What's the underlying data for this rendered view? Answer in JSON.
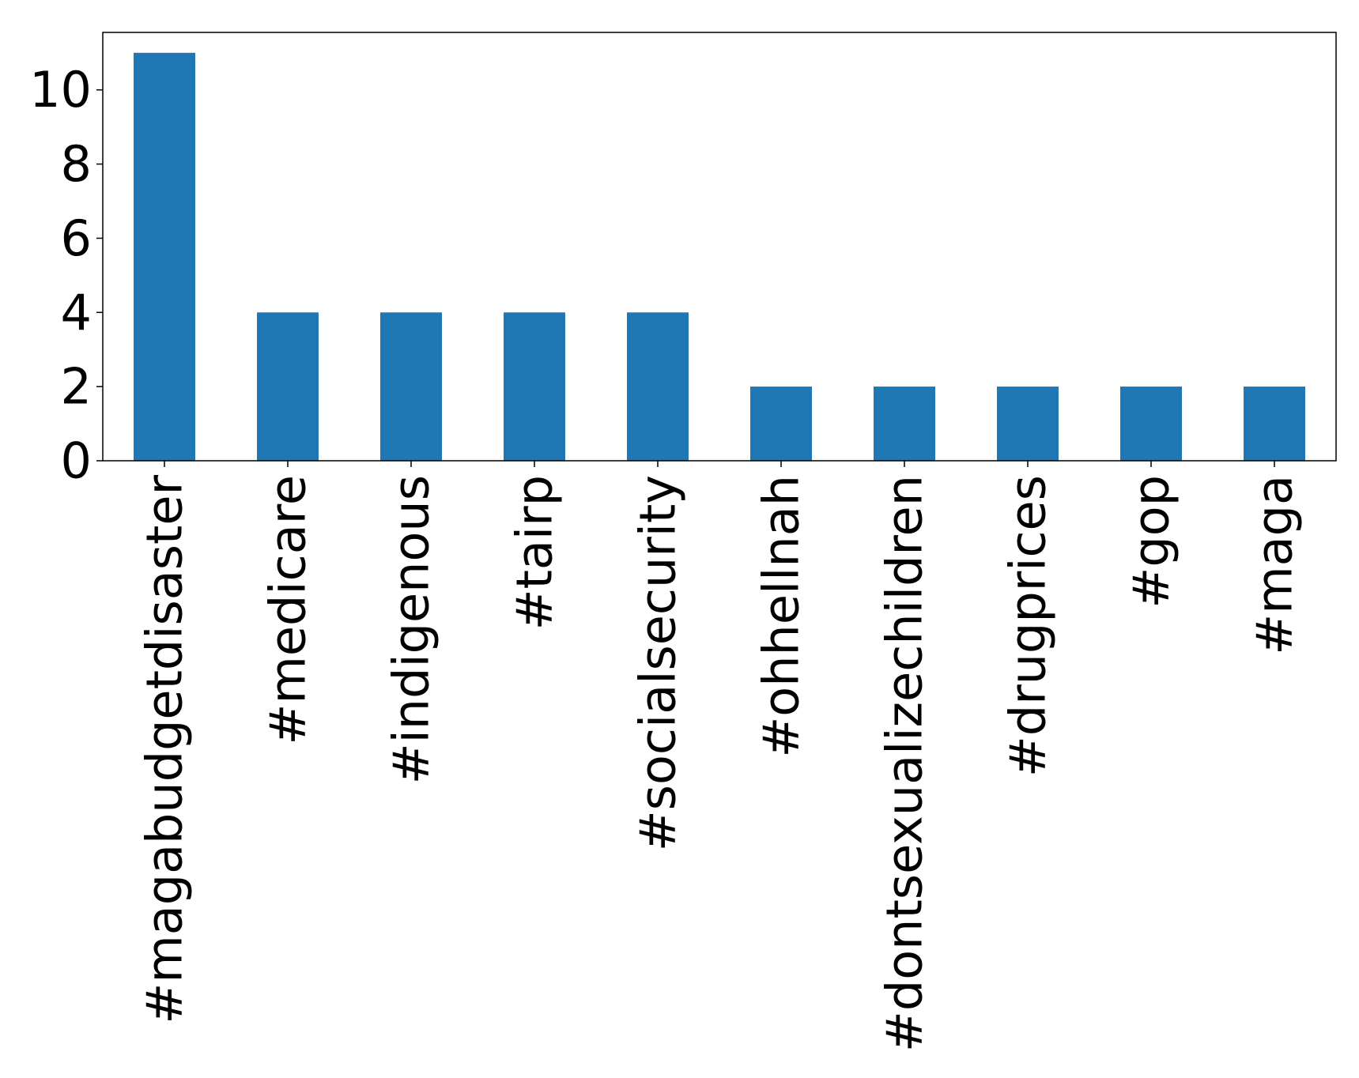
{
  "chart_data": {
    "type": "bar",
    "categories": [
      "#magabudgetdisaster",
      "#medicare",
      "#indigenous",
      "#tairp",
      "#socialsecurity",
      "#ohhellnah",
      "#dontsexualizechildren",
      "#drugprices",
      "#gop",
      "#maga"
    ],
    "values": [
      11,
      4,
      4,
      4,
      4,
      2,
      2,
      2,
      2,
      2
    ],
    "title": "",
    "xlabel": "",
    "ylabel": "",
    "ylim": [
      0,
      11.55
    ],
    "yticks": [
      "0",
      "2",
      "4",
      "6",
      "8",
      "10"
    ],
    "grid": false,
    "legend": "none",
    "bar_color": "#1f77b4"
  }
}
